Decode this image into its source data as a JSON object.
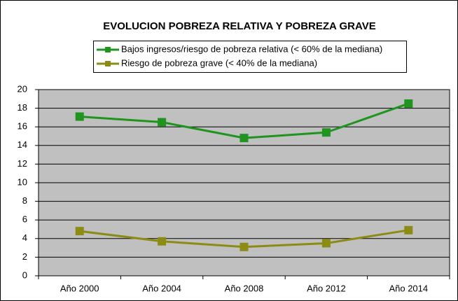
{
  "chart_data": {
    "type": "line",
    "title": "EVOLUCION POBREZA RELATIVA Y POBREZA GRAVE",
    "categories": [
      "Año 2000",
      "Año 2004",
      "Año 2008",
      "Año 2012",
      "Año 2014"
    ],
    "series": [
      {
        "name": "Bajos ingresos/riesgo de pobreza relativa (< 60% de la mediana)",
        "color": "#1f941f",
        "values": [
          17.1,
          16.5,
          14.8,
          15.4,
          18.5
        ]
      },
      {
        "name": "Riesgo de pobreza grave (< 40% de la mediana)",
        "color": "#8c8c14",
        "values": [
          4.8,
          3.7,
          3.1,
          3.5,
          4.9
        ]
      }
    ],
    "ylim": [
      0,
      20
    ],
    "yticks": [
      0,
      2,
      4,
      6,
      8,
      10,
      12,
      14,
      16,
      18,
      20
    ],
    "grid": true
  }
}
